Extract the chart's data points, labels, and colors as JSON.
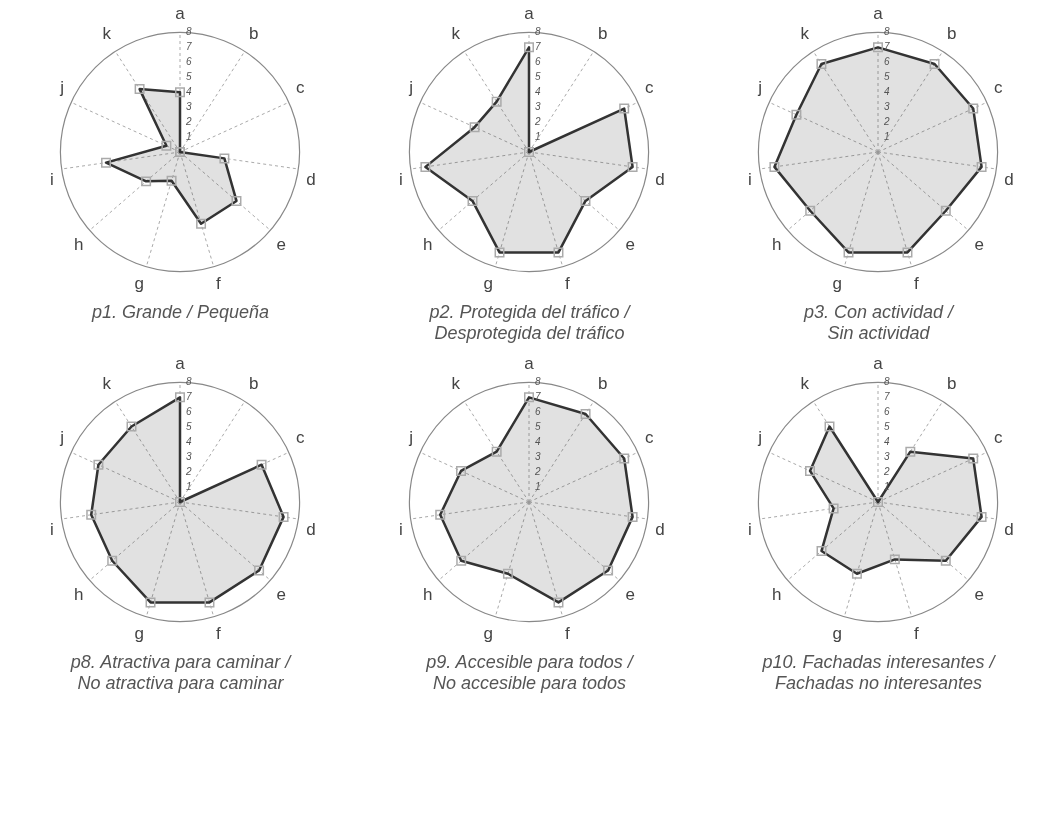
{
  "chart_data": [
    {
      "type": "radar",
      "title": "p1. Grande / Pequeña",
      "categories": [
        "a",
        "b",
        "c",
        "d",
        "e",
        "f",
        "g",
        "h",
        "i",
        "j",
        "k"
      ],
      "ylim": [
        0,
        8
      ],
      "yticks": [
        1,
        2,
        3,
        4,
        5,
        6,
        7,
        8
      ],
      "marker": "square",
      "series": [
        {
          "color": "#333333",
          "values": [
            4,
            0,
            0,
            3,
            5,
            5,
            2,
            3,
            5,
            1,
            5
          ]
        }
      ]
    },
    {
      "type": "radar",
      "title": "p2. Protegida del tráfico /\nDesprotegida del tráfico",
      "categories": [
        "a",
        "b",
        "c",
        "d",
        "e",
        "f",
        "g",
        "h",
        "i",
        "j",
        "k"
      ],
      "ylim": [
        0,
        8
      ],
      "yticks": [
        1,
        2,
        3,
        4,
        5,
        6,
        7,
        8
      ],
      "marker": "square",
      "series": [
        {
          "color": "#333333",
          "values": [
            7,
            0,
            7,
            7,
            5,
            7,
            7,
            5,
            7,
            4,
            4
          ]
        }
      ]
    },
    {
      "type": "radar",
      "title": "p3. Con actividad /\nSin actividad",
      "categories": [
        "a",
        "b",
        "c",
        "d",
        "e",
        "f",
        "g",
        "h",
        "i",
        "j",
        "k"
      ],
      "ylim": [
        0,
        8
      ],
      "yticks": [
        1,
        2,
        3,
        4,
        5,
        6,
        7,
        8
      ],
      "marker": "square",
      "series": [
        {
          "color": "#333333",
          "values": [
            7,
            7,
            7,
            7,
            6,
            7,
            7,
            6,
            7,
            6,
            7
          ]
        }
      ]
    },
    {
      "type": "radar",
      "title": "p8. Atractiva para caminar /\nNo atractiva para caminar",
      "categories": [
        "a",
        "b",
        "c",
        "d",
        "e",
        "f",
        "g",
        "h",
        "i",
        "j",
        "k"
      ],
      "ylim": [
        0,
        8
      ],
      "yticks": [
        1,
        2,
        3,
        4,
        5,
        6,
        7,
        8
      ],
      "marker": "square",
      "series": [
        {
          "color": "#333333",
          "values": [
            7,
            0,
            6,
            7,
            7,
            7,
            7,
            6,
            6,
            6,
            6
          ]
        }
      ]
    },
    {
      "type": "radar",
      "title": "p9. Accesible para todos /\nNo accesible para todos",
      "categories": [
        "a",
        "b",
        "c",
        "d",
        "e",
        "f",
        "g",
        "h",
        "i",
        "j",
        "k"
      ],
      "ylim": [
        0,
        8
      ],
      "yticks": [
        1,
        2,
        3,
        4,
        5,
        6,
        7,
        8
      ],
      "marker": "square",
      "series": [
        {
          "color": "#333333",
          "values": [
            7,
            7,
            7,
            7,
            7,
            7,
            5,
            6,
            6,
            5,
            4
          ]
        }
      ]
    },
    {
      "type": "radar",
      "title": "p10. Fachadas interesantes /\nFachadas no interesantes",
      "categories": [
        "a",
        "b",
        "c",
        "d",
        "e",
        "f",
        "g",
        "h",
        "i",
        "j",
        "k"
      ],
      "ylim": [
        0,
        8
      ],
      "yticks": [
        1,
        2,
        3,
        4,
        5,
        6,
        7,
        8
      ],
      "marker": "square",
      "series": [
        {
          "color": "#333333",
          "values": [
            0,
            4,
            7,
            7,
            6,
            4,
            5,
            5,
            3,
            5,
            6
          ]
        }
      ]
    }
  ]
}
